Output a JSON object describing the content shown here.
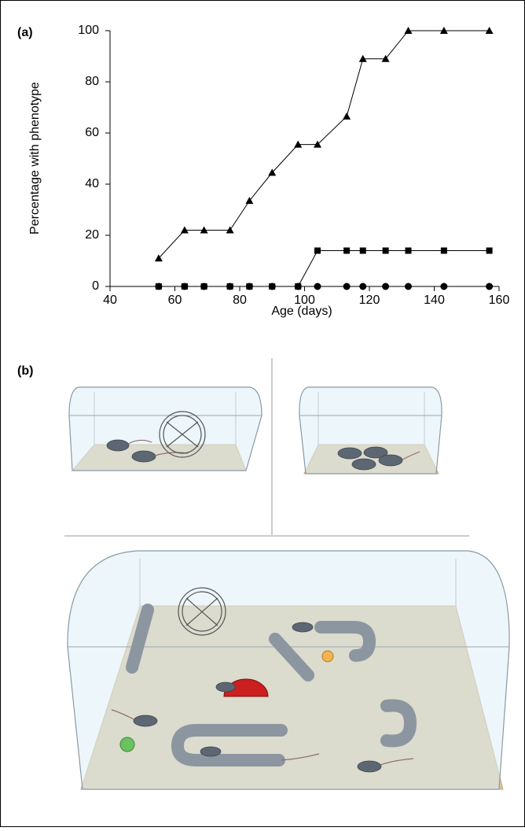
{
  "panel_a_label": "(a)",
  "panel_b_label": "(b)",
  "chart_data": {
    "type": "line",
    "x_label": "Age (days)",
    "y_label": "Percentage with phenotype",
    "x": [
      55,
      63,
      69,
      77,
      83,
      90,
      98,
      104,
      113,
      118,
      125,
      132,
      143,
      157
    ],
    "series": [
      {
        "marker": "triangle",
        "color": "#000000",
        "values": [
          11,
          22,
          22,
          22,
          33.5,
          44.5,
          55.5,
          55.5,
          66.5,
          89,
          89,
          100,
          100,
          100
        ]
      },
      {
        "marker": "square",
        "color": "#000000",
        "values": [
          0,
          0,
          0,
          0,
          0,
          0,
          0,
          14,
          14,
          14,
          14,
          14,
          14,
          14
        ]
      },
      {
        "marker": "circle",
        "color": "#000000",
        "values": [
          0,
          0,
          0,
          0,
          0,
          0,
          0,
          0,
          0,
          0,
          0,
          0,
          0,
          0
        ]
      }
    ],
    "xlim": [
      40,
      160
    ],
    "xticks": [
      40,
      60,
      80,
      100,
      120,
      140,
      160
    ],
    "ylim": [
      0,
      100
    ],
    "yticks": [
      0,
      20,
      40,
      60,
      80,
      100
    ]
  }
}
